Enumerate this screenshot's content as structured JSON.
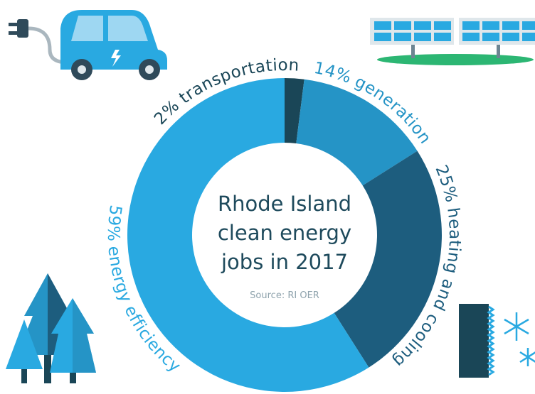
{
  "chart_data": {
    "type": "donut",
    "title": [
      "Rhode Island",
      "clean energy",
      "jobs in 2017"
    ],
    "subtitle": "Source: RI OER",
    "categories": [
      "transportation",
      "generation",
      "heating and cooling",
      "energy efficiency"
    ],
    "values": [
      2,
      14,
      25,
      59
    ],
    "value_labels": [
      "2%",
      "14%",
      "25%",
      "59%"
    ],
    "colors": [
      "#1a4657",
      "#2594c6",
      "#1d5d7e",
      "#29a9e1"
    ]
  }
}
